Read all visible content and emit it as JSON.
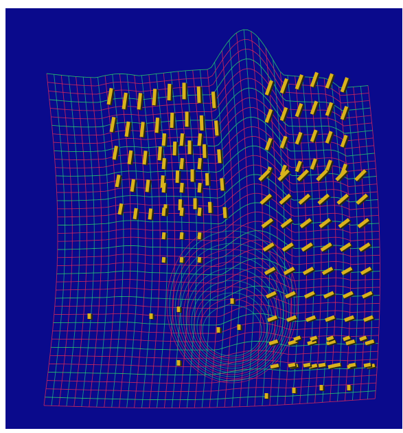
{
  "scene": {
    "subject": "tooth-crown-wireframe-mesh",
    "background_color": "#0a0a8c",
    "page_background": "#ffffff",
    "mesh_colors": {
      "primary": "#d8285c",
      "secondary": "#1fb08a",
      "tertiary": "#2bd16a"
    },
    "marker_color": "#d9b21c",
    "marker_shadow_color": "#2a2a10"
  }
}
